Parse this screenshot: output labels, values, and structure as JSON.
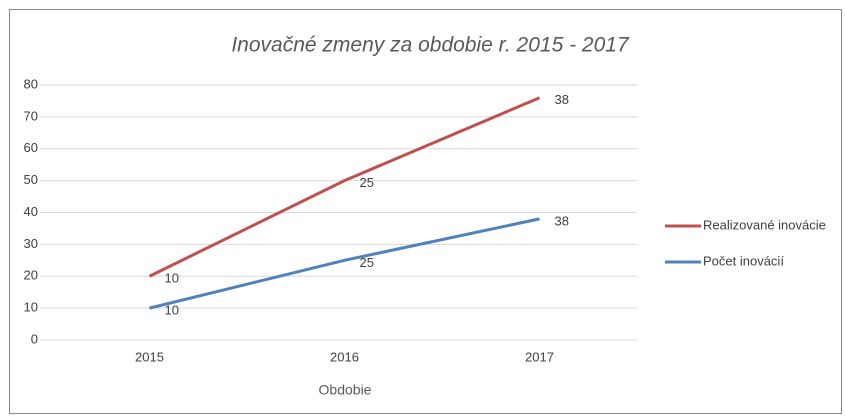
{
  "chart_data": {
    "type": "line",
    "stacked": true,
    "title": "Inovačné zmeny za obdobie r. 2015 - 2017",
    "x_label": "Obdobie",
    "categories": [
      "2015",
      "2016",
      "2017"
    ],
    "series": [
      {
        "name": "Realizované inovácie",
        "color": "#c0504d",
        "values": [
          10,
          25,
          38
        ]
      },
      {
        "name": "Počet inovácií",
        "color": "#4f81bd",
        "values": [
          10,
          25,
          38
        ]
      }
    ],
    "ylim": [
      0,
      80
    ],
    "yticks": [
      0,
      10,
      20,
      30,
      40,
      50,
      60,
      70,
      80
    ],
    "grid": true,
    "legend": "right"
  }
}
